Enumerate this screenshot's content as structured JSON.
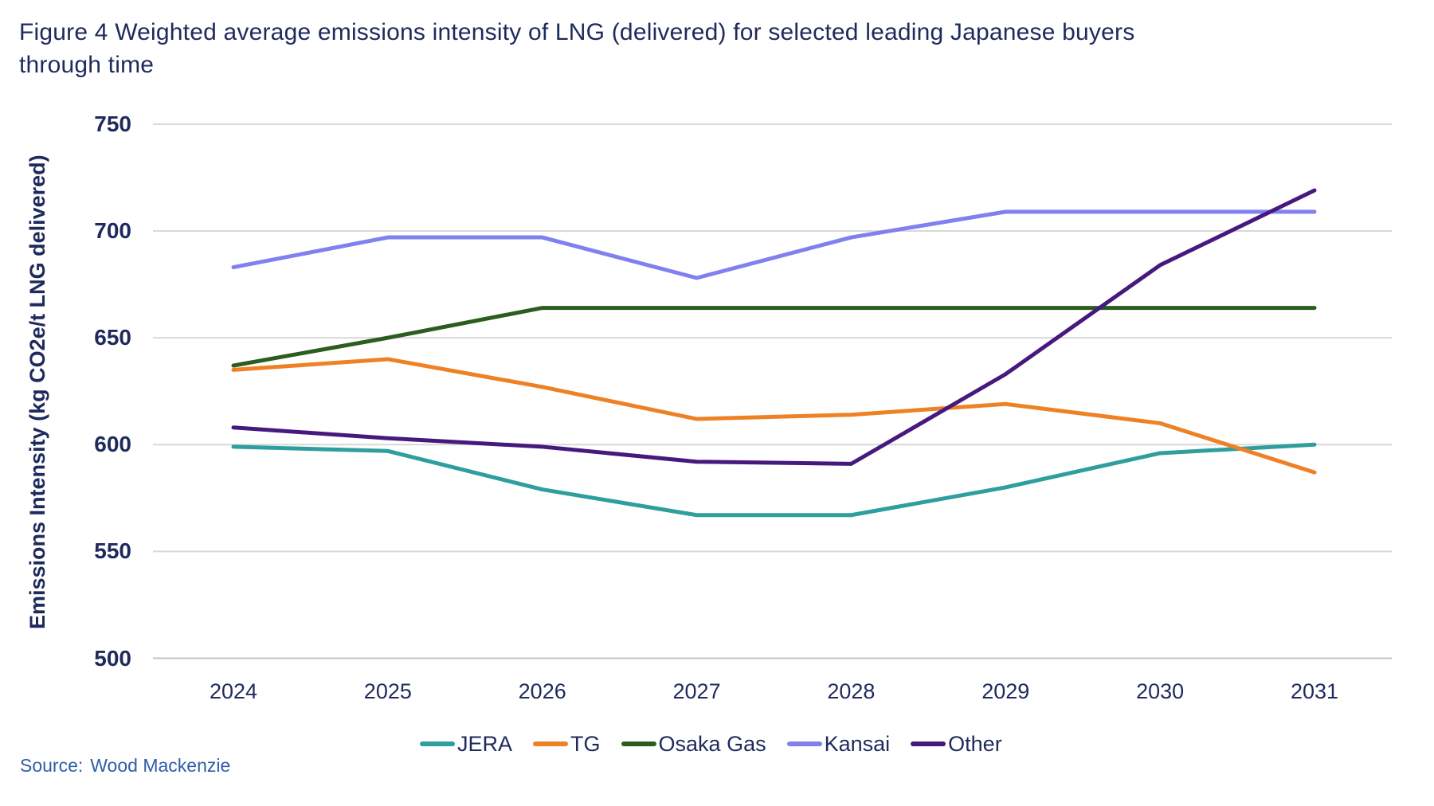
{
  "title": {
    "line1": "Figure 4 Weighted average emissions intensity of LNG (delivered) for selected leading Japanese buyers",
    "line2": "through time"
  },
  "source": {
    "label": "Source:",
    "text": "Wood Mackenzie"
  },
  "chart_data": {
    "type": "line",
    "x": [
      2024,
      2025,
      2026,
      2027,
      2028,
      2029,
      2030,
      2031
    ],
    "series": [
      {
        "name": "JERA",
        "color": "#2E9E9E",
        "values": [
          599,
          597,
          579,
          567,
          567,
          580,
          596,
          600
        ]
      },
      {
        "name": "TG",
        "color": "#EE8125",
        "values": [
          635,
          640,
          627,
          612,
          614,
          619,
          610,
          587
        ]
      },
      {
        "name": "Osaka Gas",
        "color": "#2B5D20",
        "values": [
          637,
          650,
          664,
          664,
          664,
          664,
          664,
          664
        ]
      },
      {
        "name": "Kansai",
        "color": "#8080F0",
        "values": [
          683,
          697,
          697,
          678,
          697,
          709,
          709,
          709
        ]
      },
      {
        "name": "Other",
        "color": "#47197E",
        "values": [
          608,
          603,
          599,
          592,
          591,
          633,
          684,
          719
        ]
      }
    ],
    "ylabel": "Emissions Intensity (kg CO2e/t LNG delivered)",
    "ylim": [
      500,
      750
    ],
    "yticks": [
      500,
      550,
      600,
      650,
      700,
      750
    ],
    "grid": true,
    "legend_position": "bottom"
  }
}
